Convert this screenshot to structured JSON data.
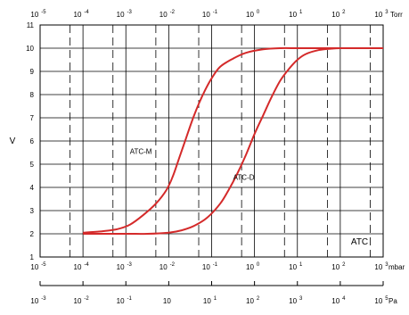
{
  "chart_data": {
    "type": "line",
    "title": "",
    "ylabel": "V",
    "ylim": [
      1,
      11
    ],
    "yticks": [
      "1",
      "2",
      "3",
      "4",
      "5",
      "6",
      "7",
      "8",
      "9",
      "10",
      "11"
    ],
    "x_axes": {
      "torr": {
        "unit": "Torr",
        "xlim_exponent": [
          -5,
          3
        ],
        "ticks": [
          {
            "base": "10",
            "exp": "-5"
          },
          {
            "base": "10",
            "exp": "-4"
          },
          {
            "base": "10",
            "exp": "-3"
          },
          {
            "base": "10",
            "exp": "-2"
          },
          {
            "base": "10",
            "exp": "-1"
          },
          {
            "base": "10",
            "exp": "0"
          },
          {
            "base": "10",
            "exp": "1"
          },
          {
            "base": "10",
            "exp": "2"
          },
          {
            "base": "10",
            "exp": "3"
          }
        ]
      },
      "mbar": {
        "unit": "mbar",
        "xlim_exponent": [
          -5,
          3
        ],
        "ticks": [
          {
            "base": "10",
            "exp": "-5"
          },
          {
            "base": "10",
            "exp": "-4"
          },
          {
            "base": "10",
            "exp": "-3"
          },
          {
            "base": "10",
            "exp": "-2"
          },
          {
            "base": "10",
            "exp": "-1"
          },
          {
            "base": "10",
            "exp": "0"
          },
          {
            "base": "10",
            "exp": "1"
          },
          {
            "base": "10",
            "exp": "2"
          },
          {
            "base": "10",
            "exp": "3"
          }
        ]
      },
      "pa": {
        "unit": "Pa",
        "xlim_exponent": [
          -3,
          5
        ],
        "ticks": [
          {
            "base": "10",
            "exp": "-3"
          },
          {
            "base": "10",
            "exp": "-2"
          },
          {
            "base": "10",
            "exp": "-1"
          },
          {
            "base": "10",
            "exp": ""
          },
          {
            "base": "10",
            "exp": "1"
          },
          {
            "base": "10",
            "exp": "2"
          },
          {
            "base": "10",
            "exp": "3"
          },
          {
            "base": "10",
            "exp": "4"
          },
          {
            "base": "10",
            "exp": "5"
          }
        ]
      }
    },
    "series": [
      {
        "name": "ATC-M",
        "color": "#d42a2a",
        "x_log10_mbar": [
          -4,
          -3.6,
          -3.2,
          -2.9,
          -2.6,
          -2.3,
          -2.05,
          -1.9,
          -1.75,
          -1.6,
          -1.45,
          -1.3,
          -1.15,
          -1.0,
          -0.8,
          -0.5,
          -0.2,
          0.2,
          0.6,
          1.0,
          1.5,
          2.0,
          2.5,
          3.0
        ],
        "y": [
          2.05,
          2.1,
          2.2,
          2.4,
          2.8,
          3.3,
          3.9,
          4.5,
          5.3,
          6.1,
          6.9,
          7.6,
          8.2,
          8.7,
          9.2,
          9.55,
          9.8,
          9.95,
          10.0,
          10.0,
          10.0,
          10.0,
          10.0,
          10.0
        ]
      },
      {
        "name": "ATC-D",
        "color": "#d42a2a",
        "x_log10_mbar": [
          -4,
          -3.0,
          -2.5,
          -2.0,
          -1.7,
          -1.4,
          -1.1,
          -0.8,
          -0.6,
          -0.4,
          -0.2,
          0.0,
          0.2,
          0.4,
          0.6,
          0.8,
          1.0,
          1.2,
          1.5,
          1.8,
          2.0,
          2.5,
          3.0
        ],
        "y": [
          2.0,
          2.0,
          2.0,
          2.05,
          2.15,
          2.35,
          2.7,
          3.3,
          3.9,
          4.6,
          5.4,
          6.3,
          7.1,
          7.9,
          8.6,
          9.1,
          9.5,
          9.75,
          9.92,
          9.98,
          10.0,
          10.0,
          10.0
        ]
      }
    ],
    "annotations": [
      {
        "id": "atc-m",
        "text": "ATC-M",
        "x_log10_mbar": -2.65,
        "y": 5.55
      },
      {
        "id": "atc-d",
        "text": "ATC-D",
        "x_log10_mbar": -0.25,
        "y": 4.45
      },
      {
        "id": "atc",
        "text": "ATC",
        "x_log10_mbar": 2.45,
        "y": 1.65
      }
    ],
    "grid": true,
    "dashed_verticals": "every half decade"
  }
}
